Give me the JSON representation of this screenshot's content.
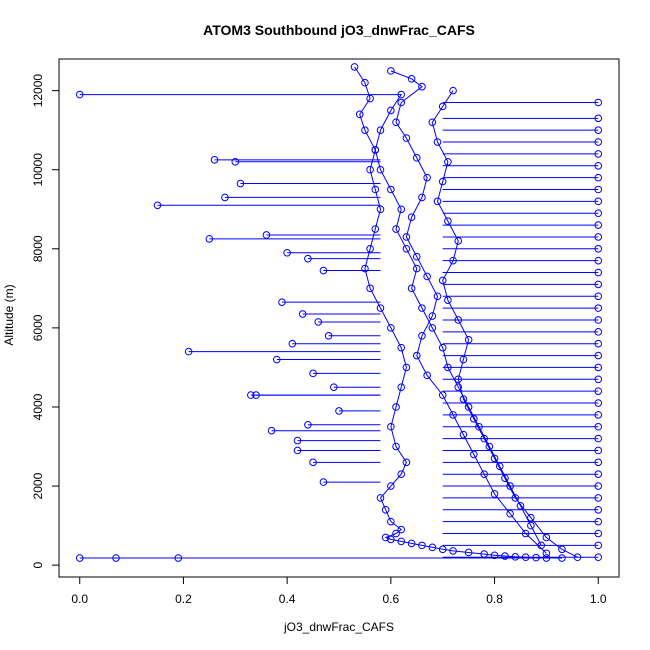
{
  "chart_data": {
    "type": "line",
    "title": "ATOM3 Southbound jO3_dnwFrac_CAFS",
    "xlabel": "jO3_dnwFrac_CAFS",
    "ylabel": "Altitude (m)",
    "xlim": [
      -0.04,
      1.04
    ],
    "ylim": [
      -300,
      12800
    ],
    "x_ticks": [
      0.0,
      0.2,
      0.4,
      0.6,
      0.8,
      1.0
    ],
    "x_tick_labels": [
      "0.0",
      "0.2",
      "0.4",
      "0.6",
      "0.8",
      "1.0"
    ],
    "y_ticks": [
      0,
      2000,
      4000,
      6000,
      8000,
      10000,
      12000
    ],
    "y_tick_labels": [
      "0",
      "2000",
      "4000",
      "6000",
      "8000",
      "10000",
      "12000"
    ],
    "grid": false,
    "legend": "none",
    "color": "#0000ff",
    "series": [
      {
        "x": [
          0.0,
          0.62,
          0.6,
          0.58,
          0.57,
          0.56,
          0.57,
          0.58,
          0.57,
          0.56,
          0.55,
          0.56,
          0.58,
          0.6,
          0.62,
          0.63,
          0.62,
          0.61,
          0.6,
          0.61,
          0.63,
          0.62,
          0.6,
          0.58,
          0.59,
          0.6,
          0.62,
          0.61,
          0.59,
          0.6,
          0.62,
          0.64,
          0.66,
          0.68,
          0.7,
          0.72,
          0.75,
          0.78,
          0.8,
          0.82,
          0.84,
          0.86,
          0.88,
          0.9,
          0.93,
          0.0
        ],
        "y": [
          11900,
          11900,
          11500,
          11000,
          10500,
          10000,
          9500,
          9000,
          8500,
          8000,
          7500,
          7000,
          6500,
          6000,
          5500,
          5000,
          4500,
          4000,
          3500,
          3000,
          2600,
          2300,
          2000,
          1700,
          1400,
          1100,
          900,
          800,
          700,
          650,
          600,
          550,
          500,
          450,
          400,
          360,
          320,
          280,
          250,
          230,
          210,
          200,
          190,
          180,
          180,
          180
        ]
      },
      {
        "x": [
          0.53,
          0.55,
          0.56,
          0.54,
          0.55,
          0.57,
          0.58,
          0.6,
          0.62,
          0.61,
          0.63,
          0.65,
          0.64,
          0.66,
          0.68,
          0.7,
          0.71,
          0.73,
          0.75,
          0.77,
          0.79,
          0.81,
          0.83,
          0.85,
          0.87,
          0.89
        ],
        "y": [
          12600,
          12200,
          11800,
          11400,
          11000,
          10500,
          10000,
          9500,
          9000,
          8500,
          8000,
          7500,
          7000,
          6500,
          6000,
          5500,
          5000,
          4500,
          4000,
          3500,
          3000,
          2500,
          2000,
          1500,
          1000,
          500
        ]
      },
      {
        "x": [
          0.6,
          0.64,
          0.66,
          0.62,
          0.61,
          0.63,
          0.65,
          0.67,
          0.66,
          0.64,
          0.63,
          0.65,
          0.67,
          0.69,
          0.68,
          0.66,
          0.65,
          0.67,
          0.7,
          0.72,
          0.74,
          0.76,
          0.78,
          0.8,
          0.83,
          0.86,
          0.9
        ],
        "y": [
          12500,
          12300,
          12100,
          11700,
          11200,
          10800,
          10300,
          9800,
          9300,
          8800,
          8300,
          7800,
          7300,
          6800,
          6300,
          5800,
          5300,
          4800,
          4300,
          3800,
          3300,
          2800,
          2300,
          1800,
          1300,
          800,
          300
        ]
      },
      {
        "x": [
          0.72,
          0.7,
          0.68,
          0.69,
          0.71,
          0.7,
          0.69,
          0.71,
          0.73,
          0.72,
          0.7,
          0.71,
          0.73,
          0.75,
          0.74,
          0.73,
          0.74,
          0.76,
          0.78,
          0.8,
          0.82,
          0.84,
          0.87,
          0.9,
          0.93,
          0.96
        ],
        "y": [
          12000,
          11600,
          11200,
          10700,
          10200,
          9700,
          9200,
          8700,
          8200,
          7700,
          7200,
          6700,
          6200,
          5700,
          5200,
          4700,
          4200,
          3700,
          3200,
          2700,
          2200,
          1700,
          1200,
          700,
          400,
          200
        ]
      }
    ],
    "scatter_points": {
      "x": [
        0.26,
        0.3,
        0.31,
        0.28,
        0.15,
        0.25,
        0.36,
        0.34,
        0.21,
        0.33,
        0.37,
        0.42,
        0.45,
        0.07,
        0.19,
        0.4,
        0.44,
        0.47,
        0.39,
        0.43,
        0.46,
        0.48,
        0.41,
        0.38,
        0.45,
        0.49,
        0.5,
        0.44,
        0.42,
        0.47
      ],
      "y": [
        10250,
        10200,
        9650,
        9300,
        9100,
        8250,
        8350,
        4300,
        5400,
        4300,
        3400,
        3150,
        2600,
        180,
        180,
        7900,
        7750,
        7450,
        6650,
        6350,
        6150,
        5800,
        5600,
        5200,
        4850,
        4500,
        3900,
        3550,
        2900,
        2100
      ]
    },
    "right_edge_points_y": [
      11700,
      11300,
      11000,
      10700,
      10400,
      10100,
      9800,
      9500,
      9200,
      8900,
      8600,
      8300,
      8000,
      7700,
      7400,
      7100,
      6800,
      6500,
      6200,
      5900,
      5600,
      5300,
      5000,
      4700,
      4400,
      4100,
      3800,
      3500,
      3200,
      2900,
      2600,
      2300,
      2000,
      1700,
      1400,
      1100,
      800,
      500,
      200
    ]
  }
}
